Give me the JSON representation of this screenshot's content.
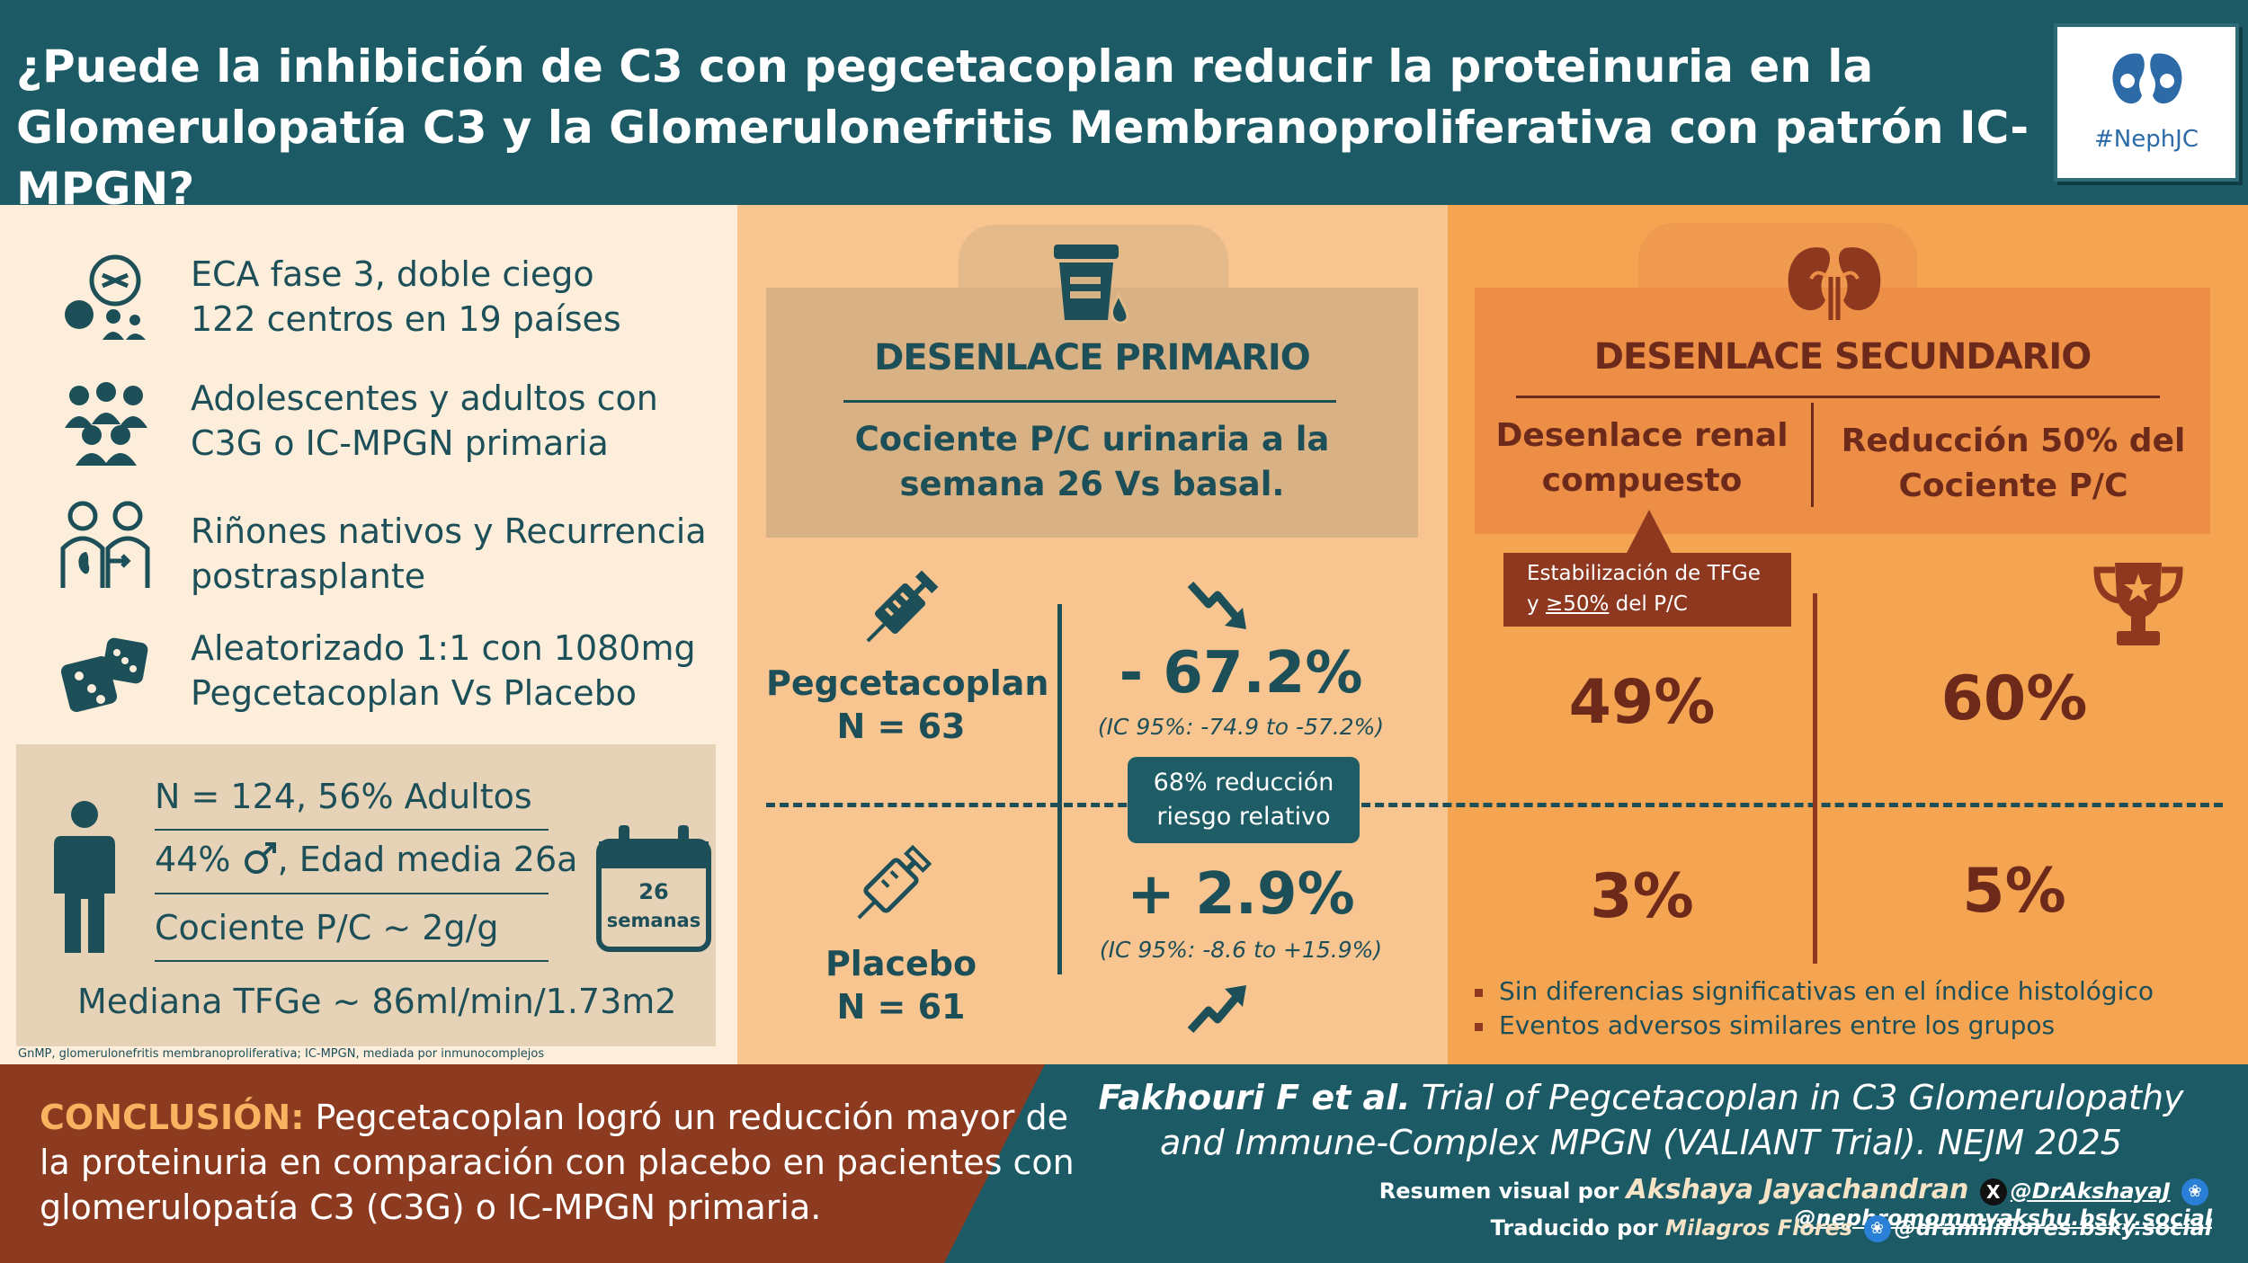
{
  "header": {
    "title_line1": "¿Puede la inhibición de C3 con pegcetacoplan reducir la proteinuria en la",
    "title_line2": "Glomerulopatía C3 y la Glomerulonefritis Membranoproliferativa con patrón IC-MPGN?",
    "logo_text": "#NephJC"
  },
  "design": {
    "features": [
      {
        "icon": "randomization-icon",
        "line1": "ECA fase 3, doble ciego",
        "line2": "122 centros en 19 países"
      },
      {
        "icon": "people-group-icon",
        "line1": "Adolescentes y adultos con",
        "line2": "C3G o IC-MPGN primaria"
      },
      {
        "icon": "kidney-transplant-icon",
        "line1": "Riñones nativos y Recurrencia",
        "line2": "postrasplante"
      },
      {
        "icon": "dice-icon",
        "line1": "Aleatorizado 1:1 con 1080mg",
        "line2": "Pegcetacoplan Vs Placebo"
      }
    ]
  },
  "baseline": {
    "line1": "N = 124, 56% Adultos",
    "line2_pre": "44%",
    "line2_post": ", Edad media 26a",
    "line3": "Cociente P/C ~ 2g/g",
    "egfr": "Mediana TFGe ~ 86ml/min/1.73m2",
    "calendar_num": "26",
    "calendar_label": "semanas"
  },
  "footnote": "GnMP, glomerulonefritis membranoproliferativa; IC-MPGN, mediada por inmunocomplejos",
  "primary": {
    "heading": "DESENLACE PRIMARIO",
    "sub1": "Cociente P/C urinaria a la",
    "sub2": "semana 26 Vs basal.",
    "pegcetacoplan_label": "Pegcetacoplan",
    "pegcetacoplan_n": "N = 63",
    "pegcetacoplan_value": "- 67.2%",
    "pegcetacoplan_ci": "(IC 95%: -74.9 to -57.2%)",
    "placebo_label": "Placebo",
    "placebo_n": "N = 61",
    "placebo_value": "+ 2.9%",
    "placebo_ci": "(IC 95%: -8.6 to +15.9%)",
    "rrr_line1": "68% reducción",
    "rrr_line2": "riesgo relativo"
  },
  "secondary": {
    "heading": "DESENLACE SECUNDARIO",
    "col1_line1": "Desenlace renal",
    "col1_line2": "compuesto",
    "col2_line1": "Reducción 50% del",
    "col2_line2": "Cociente P/C",
    "tooltip_line1": "Estabilización de TFGe",
    "tooltip_y": "y",
    "tooltip_ge": "≥50%",
    "tooltip_tail": "del P/C",
    "peg_composite": "49%",
    "peg_reduction": "60%",
    "pla_composite": "3%",
    "pla_reduction": "5%",
    "bullets": [
      "Sin diferencias significativas en el índice histológico",
      "Eventos adversos similares entre los grupos"
    ]
  },
  "conclusion": {
    "label": "CONCLUSIÓN:",
    "text": "Pegcetacoplan logró un reducción mayor de la proteinuria en comparación con placebo en pacientes con glomerulopatía C3 (C3G) o IC-MPGN primaria."
  },
  "reference": {
    "authors": "Fakhouri F et al.",
    "title_part1": "Trial of  Pegcetacoplan in C3 Glomerulopathy",
    "title_part2": "and Immune-Complex MPGN (VALIANT Trial). NEJM 2025"
  },
  "credits": {
    "visual_label": "Resumen visual por",
    "visual_author": "Akshaya Jayachandran",
    "x_handle": "@DrAkshayaJ",
    "bsky_handle": "@nephromommyakshu.bsky.social",
    "translated_label": "Traducido por",
    "translator": "Milagros Flores",
    "translator_handle": "@dramiliflores.bsky.social"
  },
  "colors": {
    "teal": "#1c5b66",
    "cream": "#fceedb",
    "peach": "#f8c590",
    "orange": "#f5a452",
    "rust": "#8c3a20"
  }
}
